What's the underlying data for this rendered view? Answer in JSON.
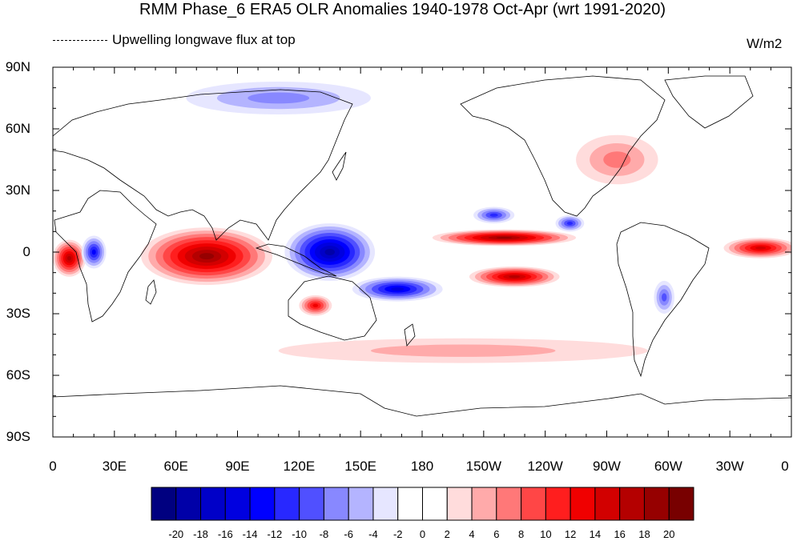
{
  "title": "RMM Phase_6 ERA5 OLR Anomalies 1940-1978 Oct-Apr (wrt 1991-2020)",
  "left_label": "Upwelling longwave flux at top",
  "units": "W/m2",
  "y_ticks": [
    "90N",
    "60N",
    "30N",
    "0",
    "30S",
    "60S",
    "90S"
  ],
  "x_ticks": [
    "0",
    "30E",
    "60E",
    "90E",
    "120E",
    "150E",
    "180",
    "150W",
    "120W",
    "90W",
    "60W",
    "30W",
    "0"
  ],
  "colorbar": {
    "labels": [
      "-20",
      "-18",
      "-16",
      "-14",
      "-12",
      "-10",
      "-8",
      "-6",
      "-4",
      "-2",
      "0",
      "2",
      "4",
      "6",
      "8",
      "10",
      "12",
      "14",
      "16",
      "18",
      "20"
    ],
    "colors": [
      "#000080",
      "#0000a8",
      "#0000c8",
      "#0000e0",
      "#0000ff",
      "#2828ff",
      "#5050ff",
      "#8888ff",
      "#b4b4ff",
      "#e6e6ff",
      "#ffffff",
      "#ffffff",
      "#ffdcdc",
      "#ffaaaa",
      "#ff7878",
      "#ff4646",
      "#ff1e1e",
      "#f00000",
      "#d20000",
      "#b40000",
      "#960000",
      "#780000"
    ]
  },
  "map_data": {
    "domain": {
      "lon": [
        0,
        360
      ],
      "lat": [
        -90,
        90
      ]
    },
    "anomaly_regions": [
      {
        "name": "indian-ocean-positive",
        "lon": 75,
        "lat": -2,
        "rlon": 32,
        "rlat": 14,
        "value": 18
      },
      {
        "name": "central-africa-positive",
        "lon": 8,
        "lat": -3,
        "rlon": 8,
        "rlat": 9,
        "value": 16
      },
      {
        "name": "maritime-continent-negative",
        "lon": 135,
        "lat": 0,
        "rlon": 22,
        "rlat": 14,
        "value": -18
      },
      {
        "name": "spcz-negative",
        "lon": 168,
        "lat": -18,
        "rlon": 22,
        "rlat": 6,
        "value": -14
      },
      {
        "name": "east-africa-negative",
        "lon": 20,
        "lat": 0,
        "rlon": 6,
        "rlat": 8,
        "value": -12
      },
      {
        "name": "east-pacific-positive",
        "lon": 220,
        "lat": 7,
        "rlon": 35,
        "rlat": 4,
        "value": 18
      },
      {
        "name": "subtropical-pacific-positive",
        "lon": 225,
        "lat": -12,
        "rlon": 22,
        "rlat": 5,
        "value": 16
      },
      {
        "name": "atlantic-positive",
        "lon": 345,
        "lat": 2,
        "rlon": 18,
        "rlat": 5,
        "value": 14
      },
      {
        "name": "australia-positive",
        "lon": 128,
        "lat": -26,
        "rlon": 8,
        "rlat": 5,
        "value": 12
      },
      {
        "name": "north-pacific-negative",
        "lon": 215,
        "lat": 18,
        "rlon": 10,
        "rlat": 4,
        "value": -10
      },
      {
        "name": "central-america-negative",
        "lon": 252,
        "lat": 14,
        "rlon": 7,
        "rlat": 4,
        "value": -10
      },
      {
        "name": "south-america-negative",
        "lon": 298,
        "lat": -22,
        "rlon": 5,
        "rlat": 8,
        "value": -8
      },
      {
        "name": "arctic-negative",
        "lon": 110,
        "lat": 75,
        "rlon": 45,
        "rlat": 8,
        "value": -6
      },
      {
        "name": "north-america-positive",
        "lon": 275,
        "lat": 45,
        "rlon": 20,
        "rlat": 12,
        "value": 6
      },
      {
        "name": "southern-ocean-positive",
        "lon": 200,
        "lat": -48,
        "rlon": 90,
        "rlat": 6,
        "value": 4
      }
    ]
  }
}
